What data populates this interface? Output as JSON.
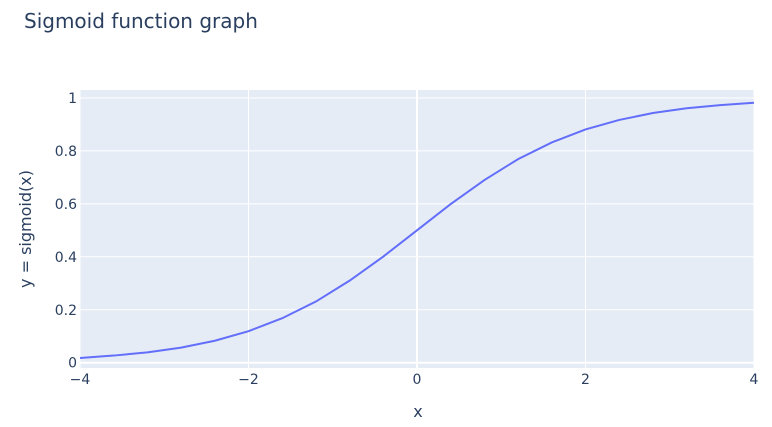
{
  "chart_data": {
    "type": "line",
    "title": "Sigmoid function graph",
    "xlabel": "x",
    "ylabel": "y = sigmoid(x)",
    "xlim": [
      -4,
      4
    ],
    "ylim": [
      -0.02,
      1.03
    ],
    "x_ticks": [
      -4,
      -2,
      0,
      2,
      4
    ],
    "x_tick_labels": [
      "−4",
      "−2",
      "0",
      "2",
      "4"
    ],
    "y_ticks": [
      0,
      0.2,
      0.4,
      0.6,
      0.8,
      1
    ],
    "y_tick_labels": [
      "0",
      "0.2",
      "0.4",
      "0.6",
      "0.8",
      "1"
    ],
    "grid": true,
    "legend": "none",
    "colors": {
      "plot_bg": "#e5ecf6",
      "grid": "#ffffff",
      "line": "#636efa",
      "text": "#2a3f5f"
    },
    "series": [
      {
        "x": [
          -4.0,
          -3.6,
          -3.2,
          -2.8,
          -2.4,
          -2.0,
          -1.6,
          -1.2,
          -0.8,
          -0.4,
          0.0,
          0.4,
          0.8,
          1.2,
          1.6,
          2.0,
          2.4,
          2.8,
          3.2,
          3.6,
          4.0
        ],
        "y": [
          0.018,
          0.027,
          0.039,
          0.057,
          0.083,
          0.119,
          0.168,
          0.231,
          0.31,
          0.401,
          0.5,
          0.599,
          0.69,
          0.769,
          0.832,
          0.881,
          0.917,
          0.943,
          0.961,
          0.973,
          0.982
        ]
      }
    ]
  }
}
